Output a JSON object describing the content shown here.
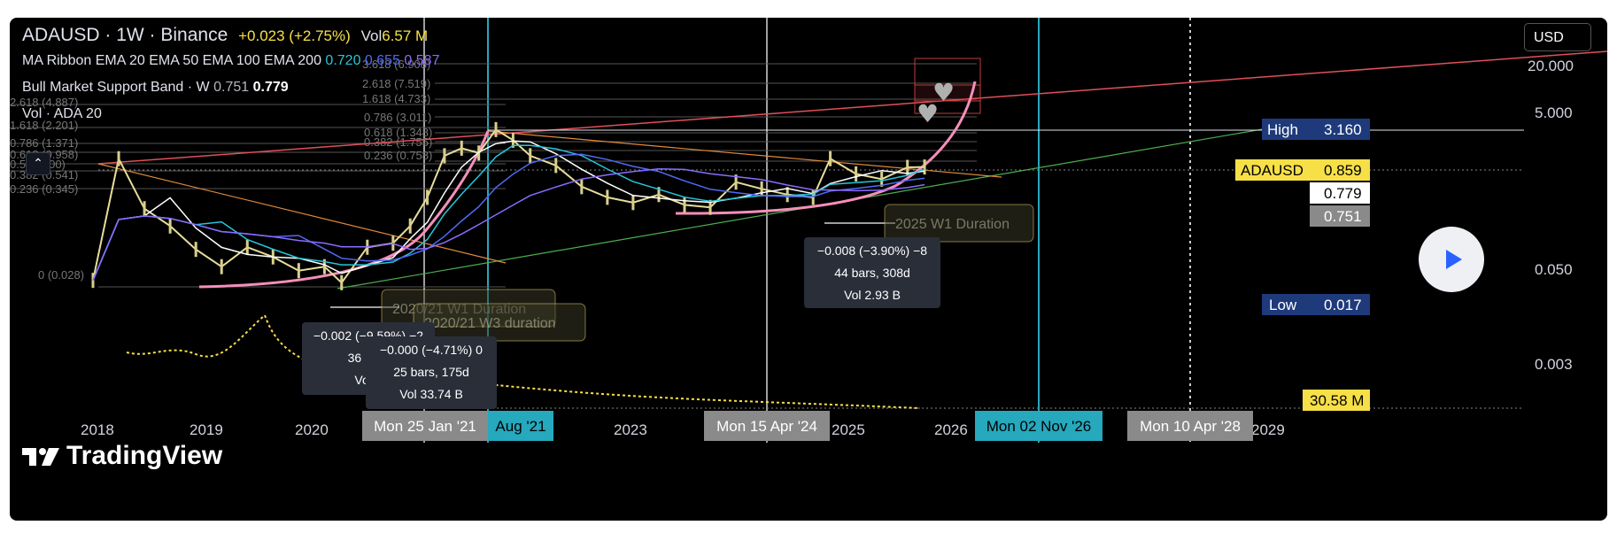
{
  "header": {
    "line1": {
      "symbol": "ADAUSD",
      "sep1": " · ",
      "interval": "1W",
      "sep2": " · ",
      "exchange": "Binance",
      "change": "+0.023 (+2.75%)",
      "vol_label": "Vol",
      "vol_value": "6.57 M"
    },
    "line2": {
      "label": "MA Ribbon EMA 20 EMA 50 EMA 100 EMA 200",
      "v1": "0.720",
      "v2": "0.655",
      "v3": "0.587"
    },
    "line3": {
      "label": "Bull Market Support Band · W",
      "v1": "0.751",
      "v2": "0.779"
    },
    "line4": {
      "label": "Vol · ADA 20"
    }
  },
  "collapse_icon": "chevron-up-icon",
  "currency_button": "USD",
  "play_icon": "play-icon",
  "logo": {
    "text": "TradingView",
    "icon": "tradingview-logo-icon"
  },
  "colors": {
    "background": "#000000",
    "ma_teal": "#26c6da",
    "ma_blue": "#4f6bf5",
    "ma_purple": "#8c6bff",
    "accent_yellow": "#f7e047",
    "pink_curve": "#f58fba",
    "vline_teal": "#26a8bd",
    "vline_gray": "#9e9e9e"
  },
  "price_axis": {
    "ticks": [
      "20.000",
      "5.000",
      "0.050",
      "0.003"
    ],
    "high_label": "High",
    "high_value": "3.160",
    "symbol_label": "ADAUSD",
    "symbol_value": "0.859",
    "band_value_1": "0.779",
    "band_value_2": "0.751",
    "low_label": "Low",
    "low_value": "0.017",
    "volume_value": "30.58 M"
  },
  "time_axis": {
    "ticks": [
      "2018",
      "2019",
      "2020",
      "Aug '21",
      "2023",
      "2025",
      "2026",
      "2029"
    ],
    "highlighted": [
      "Mon 25 Jan '21",
      "Mon 15 Apr '24",
      "Mon 02 Nov '26",
      "Mon 10 Apr '28"
    ]
  },
  "fib_labels": [
    "3.618 (6.908)",
    "2.618 (7.519)",
    "1.618 (4.733)",
    "0.786 (3.011)",
    "0.618 (1.348)",
    "0.382 (1.755)",
    "0.236 (0.758)",
    "2.618 (4.887)",
    "1.618 (2.201)",
    "0.786 (1.371)",
    "0.618 (0.958)",
    "0.5 (0.700)",
    "0.382 (0.541)",
    "0.236 (0.345)",
    "0 (0.028)"
  ],
  "duration_labels": [
    "2020/21 W1 Duration",
    "2020/21 W3 duration",
    "2025 W1 Duration"
  ],
  "measure_boxes": [
    {
      "line1": "−0.002 (−9.59%) −2",
      "line2": "36 bars",
      "line3": "Vol 3"
    },
    {
      "line1": "−0.000 (−4.71%) 0",
      "line2": "25 bars, 175d",
      "line3": "Vol 33.74 B"
    },
    {
      "line1": "−0.008 (−3.90%) −8",
      "line2": "44 bars, 308d",
      "line3": "Vol 2.93 B"
    }
  ],
  "chart_data": {
    "type": "line",
    "title": "ADAUSD · 1W · Binance",
    "scale": "log",
    "x_range": [
      "2017-10",
      "2029-04"
    ],
    "y_range": [
      0.002,
      25
    ],
    "series": [
      {
        "name": "ADAUSD",
        "x": [
          "2017-10",
          "2018-01",
          "2018-04",
          "2018-07",
          "2018-10",
          "2019-01",
          "2019-04",
          "2019-07",
          "2019-10",
          "2020-01",
          "2020-03",
          "2020-06",
          "2020-09",
          "2020-11",
          "2021-01",
          "2021-03",
          "2021-05",
          "2021-07",
          "2021-09",
          "2021-11",
          "2022-01",
          "2022-04",
          "2022-07",
          "2022-10",
          "2023-01",
          "2023-04",
          "2023-07",
          "2023-10",
          "2024-01",
          "2024-04",
          "2024-07",
          "2024-10",
          "2024-12",
          "2025-03",
          "2025-06",
          "2025-09",
          "2025-11"
        ],
        "values": [
          0.03,
          1.1,
          0.25,
          0.15,
          0.075,
          0.045,
          0.08,
          0.06,
          0.04,
          0.045,
          0.028,
          0.08,
          0.09,
          0.15,
          0.35,
          1.2,
          1.5,
          1.3,
          2.6,
          1.9,
          1.2,
          0.9,
          0.48,
          0.35,
          0.3,
          0.38,
          0.28,
          0.26,
          0.55,
          0.45,
          0.38,
          0.35,
          1.1,
          0.7,
          0.6,
          0.85,
          0.86
        ]
      }
    ],
    "moving_averages": [
      "EMA 20",
      "EMA 50",
      "EMA 100",
      "EMA 200"
    ],
    "last_values": {
      "ADAUSD": 0.859,
      "EMA 20": 0.72,
      "EMA 50": 0.655,
      "EMA 100": 0.587,
      "BMSB": [
        0.751,
        0.779
      ]
    },
    "volume": {
      "label": "Vol · ADA 20",
      "last": "30.58 M"
    },
    "high": 3.16,
    "low": 0.017,
    "grid": false,
    "legend": "top-left"
  }
}
